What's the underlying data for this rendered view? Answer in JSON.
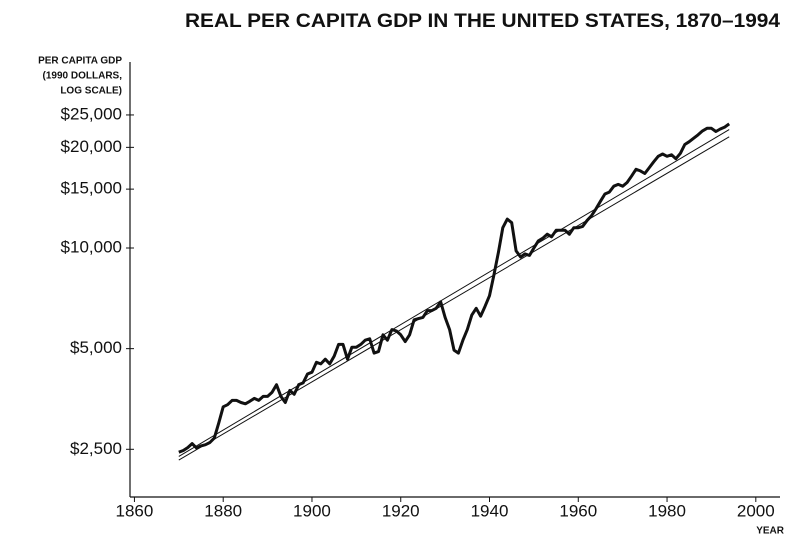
{
  "chart_data": {
    "type": "line",
    "title": "REAL PER CAPITA GDP IN THE UNITED STATES, 1870–1994",
    "y_label": [
      "PER CAPITA GDP",
      "(1990 DOLLARS,",
      "LOG SCALE)"
    ],
    "x_label": "YEAR",
    "log_y": true,
    "xlim": [
      1859,
      2005
    ],
    "ylim": [
      1800,
      36000
    ],
    "xticks": [
      1860,
      1880,
      1900,
      1920,
      1940,
      1960,
      1980,
      2000
    ],
    "yticks": [
      {
        "value": 2500,
        "label": "$2,500"
      },
      {
        "value": 5000,
        "label": "$5,000"
      },
      {
        "value": 10000,
        "label": "$10,000"
      },
      {
        "value": 15000,
        "label": "$15,000"
      },
      {
        "value": 20000,
        "label": "$20,000"
      },
      {
        "value": 25000,
        "label": "$25,000"
      }
    ],
    "series": [
      {
        "color": "#111111",
        "width": 3,
        "x": [
          1870,
          1871,
          1872,
          1873,
          1874,
          1875,
          1876,
          1877,
          1878,
          1879,
          1880,
          1881,
          1882,
          1883,
          1884,
          1885,
          1886,
          1887,
          1888,
          1889,
          1890,
          1891,
          1892,
          1893,
          1894,
          1895,
          1896,
          1897,
          1898,
          1899,
          1900,
          1901,
          1902,
          1903,
          1904,
          1905,
          1906,
          1907,
          1908,
          1909,
          1910,
          1911,
          1912,
          1913,
          1914,
          1915,
          1916,
          1917,
          1918,
          1919,
          1920,
          1921,
          1922,
          1923,
          1924,
          1925,
          1926,
          1927,
          1928,
          1929,
          1930,
          1931,
          1932,
          1933,
          1934,
          1935,
          1936,
          1937,
          1938,
          1939,
          1940,
          1941,
          1942,
          1943,
          1944,
          1945,
          1946,
          1947,
          1948,
          1949,
          1950,
          1951,
          1952,
          1953,
          1954,
          1955,
          1956,
          1957,
          1958,
          1959,
          1960,
          1961,
          1962,
          1963,
          1964,
          1965,
          1966,
          1967,
          1968,
          1969,
          1970,
          1971,
          1972,
          1973,
          1974,
          1975,
          1976,
          1977,
          1978,
          1979,
          1980,
          1981,
          1982,
          1983,
          1984,
          1985,
          1986,
          1987,
          1988,
          1989,
          1990,
          1991,
          1992,
          1993,
          1994
        ],
        "values": [
          2450,
          2480,
          2530,
          2600,
          2520,
          2560,
          2580,
          2620,
          2700,
          3000,
          3350,
          3400,
          3500,
          3500,
          3450,
          3420,
          3480,
          3550,
          3500,
          3600,
          3600,
          3700,
          3900,
          3600,
          3450,
          3750,
          3650,
          3900,
          3950,
          4200,
          4250,
          4550,
          4500,
          4650,
          4500,
          4750,
          5150,
          5150,
          4650,
          5050,
          5050,
          5150,
          5300,
          5350,
          4850,
          4900,
          5500,
          5300,
          5700,
          5650,
          5500,
          5250,
          5500,
          6100,
          6150,
          6200,
          6500,
          6500,
          6600,
          6900,
          6200,
          5700,
          4950,
          4850,
          5300,
          5700,
          6300,
          6600,
          6250,
          6700,
          7200,
          8300,
          9700,
          11500,
          12200,
          11900,
          9800,
          9400,
          9600,
          9500,
          10000,
          10500,
          10700,
          11000,
          10800,
          11300,
          11300,
          11300,
          11000,
          11500,
          11500,
          11600,
          12100,
          12500,
          13100,
          13800,
          14500,
          14700,
          15300,
          15500,
          15300,
          15700,
          16400,
          17200,
          17000,
          16700,
          17400,
          18100,
          18800,
          19100,
          18800,
          19000,
          18500,
          19200,
          20400,
          20800,
          21300,
          21800,
          22400,
          22800,
          22800,
          22300,
          22700,
          23000,
          23500
        ]
      },
      {
        "color": "#111111",
        "width": 1,
        "x": [
          1870,
          1994
        ],
        "values": [
          2380,
          22600
        ]
      },
      {
        "color": "#111111",
        "width": 1,
        "x": [
          1870,
          1994
        ],
        "values": [
          2320,
          21500
        ]
      }
    ]
  }
}
